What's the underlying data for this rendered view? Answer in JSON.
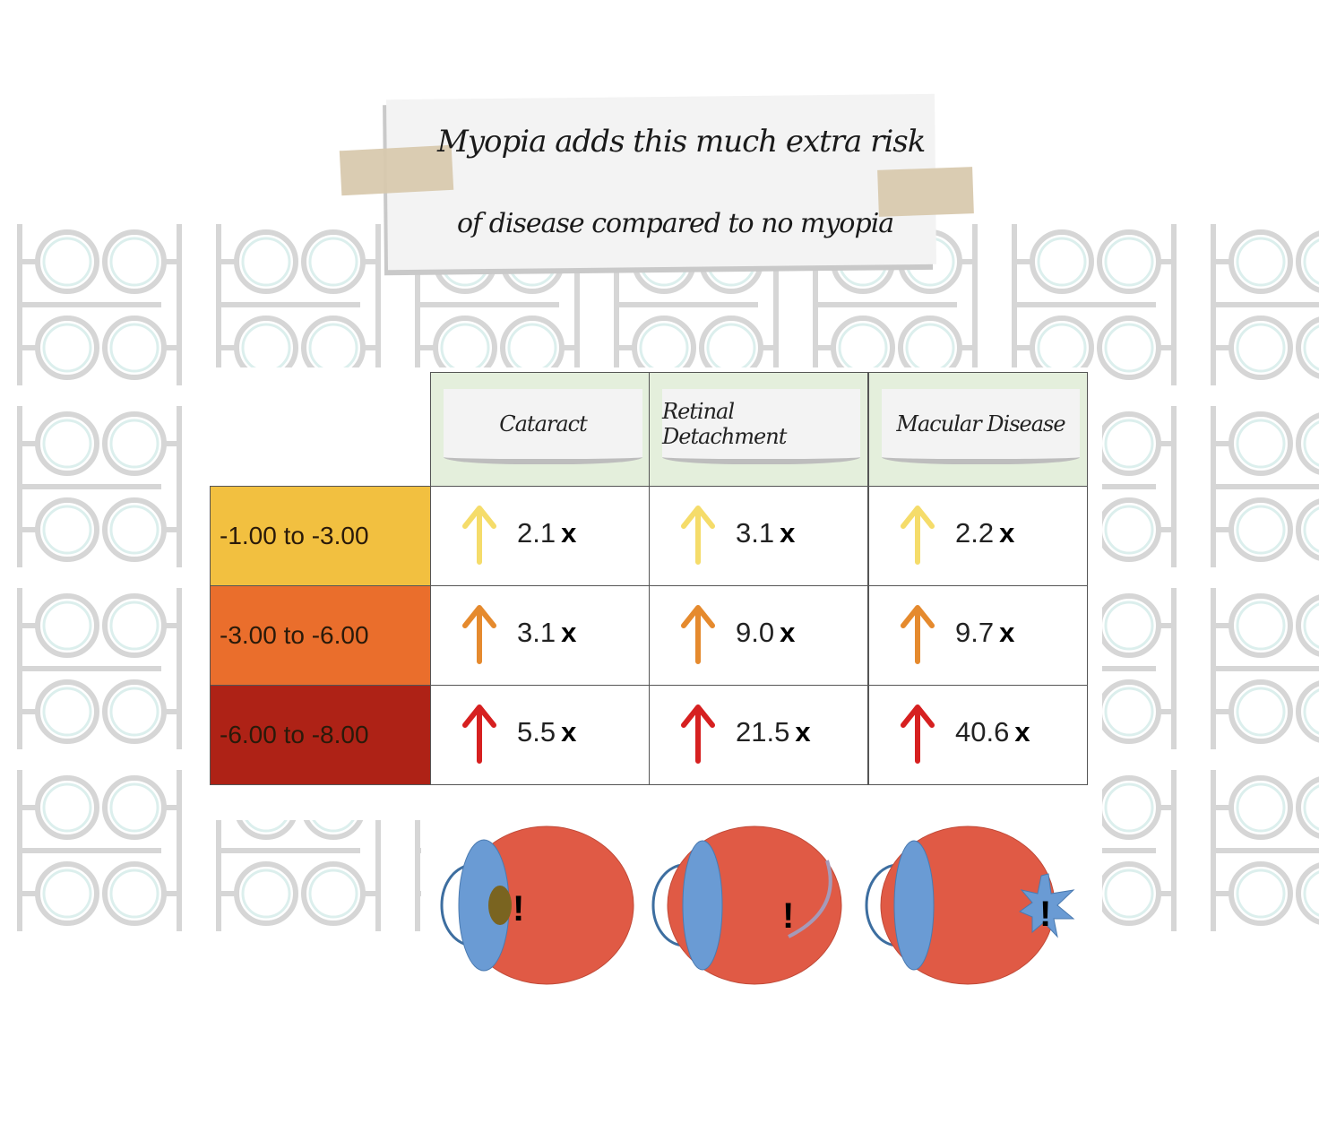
{
  "title": {
    "line1": "Myopia adds this much extra risk",
    "line2": "of disease compared to no myopia"
  },
  "columns": [
    "Cataract",
    "Retinal Detachment",
    "Macular Disease"
  ],
  "rows": [
    {
      "label": "-1.00 to -3.00",
      "color": "#f2c040",
      "arrow_color": "#f5dc6a",
      "values": [
        "2.1",
        "3.1",
        "2.2"
      ]
    },
    {
      "label": "-3.00 to -6.00",
      "color": "#ea6e2c",
      "arrow_color": "#e58a2e",
      "values": [
        "3.1",
        "9.0",
        "9.7"
      ]
    },
    {
      "label": "-6.00 to -8.00",
      "color": "#ae2216",
      "arrow_color": "#d62020",
      "values": [
        "5.5",
        "21.5",
        "40.6"
      ]
    }
  ],
  "multiplier": "x",
  "icons": [
    "eye-cataract-icon",
    "eye-retinal-detachment-icon",
    "eye-macular-disease-icon",
    "arrow-up-icon"
  ],
  "colors": {
    "eye": "#e05a45",
    "lens": "#6a9bd4",
    "header_bg": "#e4efdc"
  }
}
